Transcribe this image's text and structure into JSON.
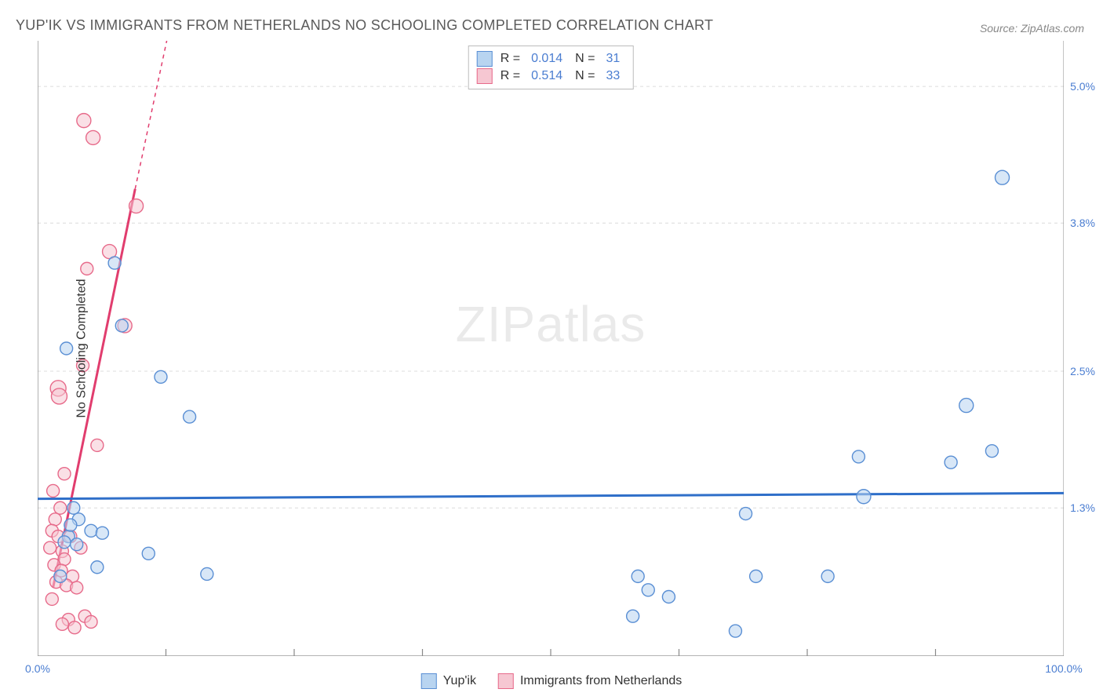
{
  "title": "YUP'IK VS IMMIGRANTS FROM NETHERLANDS NO SCHOOLING COMPLETED CORRELATION CHART",
  "source": "Source: ZipAtlas.com",
  "ylabel": "No Schooling Completed",
  "watermark_a": "ZIP",
  "watermark_b": "atlas",
  "chart": {
    "type": "scatter",
    "background_color": "#ffffff",
    "grid_color": "#dcdcdc",
    "axis_color": "#888888",
    "tick_label_color": "#4a7dd1",
    "xlim": [
      0,
      100
    ],
    "ylim": [
      0,
      5.4
    ],
    "xticks_minor": [
      12.5,
      25,
      37.5,
      50,
      62.5,
      75,
      87.5
    ],
    "xticks_labels": [
      {
        "v": 0,
        "label": "0.0%"
      },
      {
        "v": 100,
        "label": "100.0%"
      }
    ],
    "yticks": [
      {
        "v": 1.3,
        "label": "1.3%"
      },
      {
        "v": 2.5,
        "label": "2.5%"
      },
      {
        "v": 3.8,
        "label": "3.8%"
      },
      {
        "v": 5.0,
        "label": "5.0%"
      }
    ],
    "series": [
      {
        "name": "Yup'ik",
        "fill": "#b8d4f0",
        "stroke": "#5a8fd4",
        "fill_opacity": 0.55,
        "marker_r_base": 8,
        "trend": {
          "x1": 0,
          "y1": 1.38,
          "x2": 100,
          "y2": 1.43,
          "color": "#2f6fc9",
          "width": 3
        },
        "R": "0.014",
        "N": "31",
        "points": [
          {
            "x": 2.8,
            "y": 2.7,
            "r": 8
          },
          {
            "x": 7.5,
            "y": 3.45,
            "r": 8
          },
          {
            "x": 8.2,
            "y": 2.9,
            "r": 8
          },
          {
            "x": 12.0,
            "y": 2.45,
            "r": 8
          },
          {
            "x": 14.8,
            "y": 2.1,
            "r": 8
          },
          {
            "x": 3.5,
            "y": 1.3,
            "r": 8
          },
          {
            "x": 4.0,
            "y": 1.2,
            "r": 8
          },
          {
            "x": 5.2,
            "y": 1.1,
            "r": 8
          },
          {
            "x": 6.3,
            "y": 1.08,
            "r": 8
          },
          {
            "x": 3.0,
            "y": 1.05,
            "r": 8
          },
          {
            "x": 2.6,
            "y": 1.0,
            "r": 8
          },
          {
            "x": 3.8,
            "y": 0.98,
            "r": 8
          },
          {
            "x": 5.8,
            "y": 0.78,
            "r": 8
          },
          {
            "x": 10.8,
            "y": 0.9,
            "r": 8
          },
          {
            "x": 16.5,
            "y": 0.72,
            "r": 8
          },
          {
            "x": 2.2,
            "y": 0.7,
            "r": 8
          },
          {
            "x": 94.0,
            "y": 4.2,
            "r": 9
          },
          {
            "x": 90.5,
            "y": 2.2,
            "r": 9
          },
          {
            "x": 93.0,
            "y": 1.8,
            "r": 8
          },
          {
            "x": 89.0,
            "y": 1.7,
            "r": 8
          },
          {
            "x": 80.0,
            "y": 1.75,
            "r": 8
          },
          {
            "x": 80.5,
            "y": 1.4,
            "r": 9
          },
          {
            "x": 69.0,
            "y": 1.25,
            "r": 8
          },
          {
            "x": 70.0,
            "y": 0.7,
            "r": 8
          },
          {
            "x": 77.0,
            "y": 0.7,
            "r": 8
          },
          {
            "x": 58.5,
            "y": 0.7,
            "r": 8
          },
          {
            "x": 59.5,
            "y": 0.58,
            "r": 8
          },
          {
            "x": 61.5,
            "y": 0.52,
            "r": 8
          },
          {
            "x": 58.0,
            "y": 0.35,
            "r": 8
          },
          {
            "x": 68.0,
            "y": 0.22,
            "r": 8
          },
          {
            "x": 3.2,
            "y": 1.15,
            "r": 8
          }
        ]
      },
      {
        "name": "Immigrants from Netherlands",
        "fill": "#f6c7d2",
        "stroke": "#e76a8a",
        "fill_opacity": 0.55,
        "marker_r_base": 8,
        "trend": {
          "x1": 1.5,
          "y1": 0.6,
          "x2": 9.5,
          "y2": 4.1,
          "color": "#e13d6e",
          "width": 3,
          "dash_ext": {
            "x1": 9.5,
            "y1": 4.1,
            "x2": 14,
            "y2": 6.0
          }
        },
        "R": "0.514",
        "N": "33",
        "points": [
          {
            "x": 4.5,
            "y": 4.7,
            "r": 9
          },
          {
            "x": 5.4,
            "y": 4.55,
            "r": 9
          },
          {
            "x": 9.6,
            "y": 3.95,
            "r": 9
          },
          {
            "x": 7.0,
            "y": 3.55,
            "r": 9
          },
          {
            "x": 4.8,
            "y": 3.4,
            "r": 8
          },
          {
            "x": 8.5,
            "y": 2.9,
            "r": 9
          },
          {
            "x": 4.4,
            "y": 2.55,
            "r": 8
          },
          {
            "x": 2.0,
            "y": 2.35,
            "r": 10
          },
          {
            "x": 2.1,
            "y": 2.28,
            "r": 10
          },
          {
            "x": 5.8,
            "y": 1.85,
            "r": 8
          },
          {
            "x": 2.6,
            "y": 1.6,
            "r": 8
          },
          {
            "x": 1.5,
            "y": 1.45,
            "r": 8
          },
          {
            "x": 2.2,
            "y": 1.3,
            "r": 8
          },
          {
            "x": 1.7,
            "y": 1.2,
            "r": 8
          },
          {
            "x": 1.4,
            "y": 1.1,
            "r": 8
          },
          {
            "x": 2.0,
            "y": 1.05,
            "r": 8
          },
          {
            "x": 3.2,
            "y": 1.05,
            "r": 8
          },
          {
            "x": 1.2,
            "y": 0.95,
            "r": 8
          },
          {
            "x": 2.4,
            "y": 0.92,
            "r": 8
          },
          {
            "x": 2.6,
            "y": 0.85,
            "r": 8
          },
          {
            "x": 4.2,
            "y": 0.95,
            "r": 8
          },
          {
            "x": 1.6,
            "y": 0.8,
            "r": 8
          },
          {
            "x": 2.3,
            "y": 0.75,
            "r": 8
          },
          {
            "x": 3.4,
            "y": 0.7,
            "r": 8
          },
          {
            "x": 1.8,
            "y": 0.65,
            "r": 8
          },
          {
            "x": 2.8,
            "y": 0.62,
            "r": 8
          },
          {
            "x": 3.8,
            "y": 0.6,
            "r": 8
          },
          {
            "x": 1.4,
            "y": 0.5,
            "r": 8
          },
          {
            "x": 4.6,
            "y": 0.35,
            "r": 8
          },
          {
            "x": 3.0,
            "y": 0.32,
            "r": 8
          },
          {
            "x": 5.2,
            "y": 0.3,
            "r": 8
          },
          {
            "x": 2.4,
            "y": 0.28,
            "r": 8
          },
          {
            "x": 3.6,
            "y": 0.25,
            "r": 8
          }
        ]
      }
    ]
  },
  "legend_top_rows": [
    {
      "swatch_fill": "#b8d4f0",
      "swatch_stroke": "#5a8fd4",
      "r_label": "R =",
      "r": "0.014",
      "n_label": "N =",
      "n": "31"
    },
    {
      "swatch_fill": "#f6c7d2",
      "swatch_stroke": "#e76a8a",
      "r_label": "R =",
      "r": "0.514",
      "n_label": "N =",
      "n": "33"
    }
  ],
  "legend_bottom": [
    {
      "swatch_fill": "#b8d4f0",
      "swatch_stroke": "#5a8fd4",
      "label": "Yup'ik"
    },
    {
      "swatch_fill": "#f6c7d2",
      "swatch_stroke": "#e76a8a",
      "label": "Immigrants from Netherlands"
    }
  ]
}
